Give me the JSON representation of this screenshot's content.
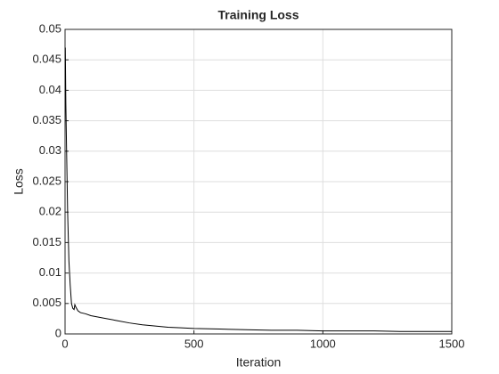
{
  "chart_data": {
    "type": "line",
    "title": "Training Loss",
    "x_label": "Iteration",
    "y_label": "Loss",
    "x": [
      1,
      3,
      6,
      10,
      15,
      20,
      25,
      30,
      35,
      38,
      42,
      50,
      60,
      80,
      100,
      150,
      200,
      250,
      300,
      350,
      400,
      450,
      500,
      600,
      700,
      800,
      900,
      1000,
      1100,
      1200,
      1300,
      1400,
      1500
    ],
    "series": [
      {
        "name": "Loss",
        "color": "#000000",
        "values": [
          0.047,
          0.038,
          0.03,
          0.02,
          0.012,
          0.008,
          0.005,
          0.0042,
          0.004,
          0.0048,
          0.0044,
          0.0038,
          0.0035,
          0.0033,
          0.003,
          0.0026,
          0.0022,
          0.0018,
          0.0015,
          0.0013,
          0.0011,
          0.001,
          0.0009,
          0.0008,
          0.0007,
          0.0006,
          0.0006,
          0.0005,
          0.0005,
          0.0005,
          0.0004,
          0.0004,
          0.0004
        ]
      }
    ],
    "xlim": [
      0,
      1500
    ],
    "xticks": [
      0,
      500,
      1000,
      1500
    ],
    "ylim": [
      0,
      0.05
    ],
    "yticks": [
      0,
      0.005,
      0.01,
      0.015,
      0.02,
      0.025,
      0.03,
      0.035,
      0.04,
      0.045,
      0.05
    ],
    "grid": true
  }
}
